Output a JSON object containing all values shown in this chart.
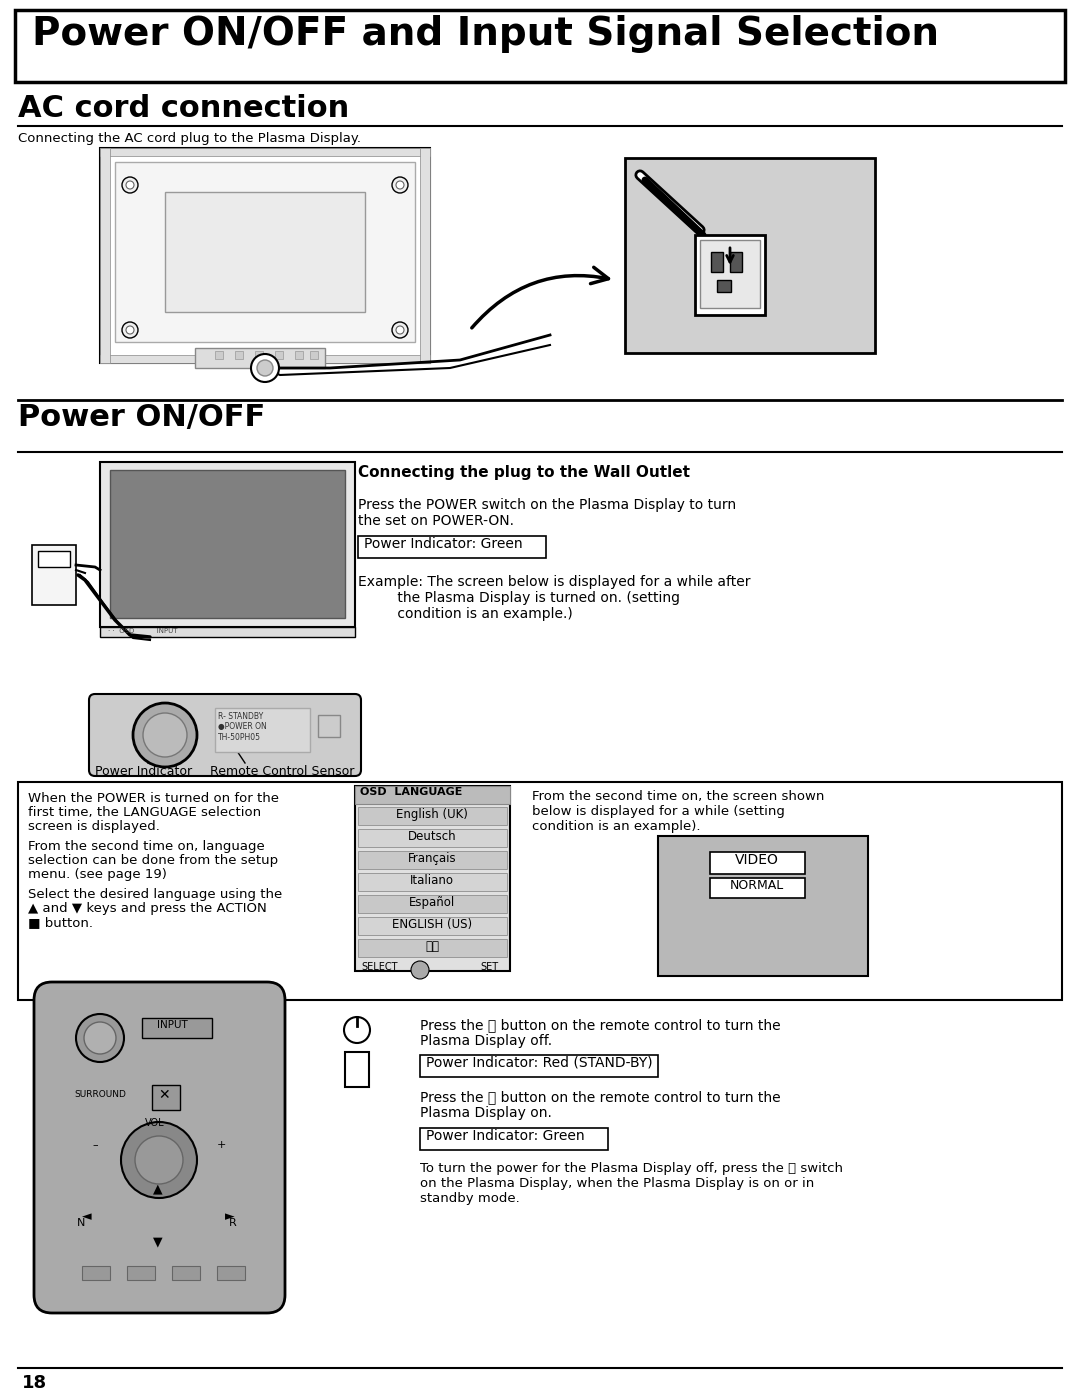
{
  "bg_color": "#ffffff",
  "page_num": "18",
  "main_title": "Power ON/OFF and Input Signal Selection",
  "section1_title": "AC cord connection",
  "section1_subtitle": "Connecting the AC cord plug to the Plasma Display.",
  "section2_title": "Power ON/OFF",
  "wall_outlet_heading": "Connecting the plug to the Wall Outlet",
  "power_on_text1": "Press the POWER switch on the Plasma Display to turn\nthe set on POWER-ON.",
  "power_indicator_green": "Power Indicator: Green",
  "example_text": "Example: The screen below is displayed for a while after\n         the Plasma Display is turned on. (setting\n         condition is an example.)",
  "power_indicator_label": "Power Indicator",
  "remote_sensor_label": "Remote Control Sensor",
  "osd_title": "OSD  LANGUAGE",
  "osd_languages": [
    "English (UK)",
    "Deutsch",
    "Français",
    "Italiano",
    "Español",
    "ENGLISH (US)",
    "中文"
  ],
  "from_second_text": "From the second time on, the screen shown\nbelow is displayed for a while (setting\ncondition is an example).",
  "video_label": "VIDEO",
  "normal_label": "NORMAL",
  "press_off_text": "Press the ⏻ button on the remote control to turn the\nPlasma Display off.",
  "power_indicator_red": "Power Indicator: Red (STAND-BY)",
  "press_on_text": "Press the ⏻ button on the remote control to turn the\nPlasma Display on.",
  "power_indicator_green2": "Power Indicator: Green",
  "standby_text": "To turn the power for the Plasma Display off, press the ⏻ switch\non the Plasma Display, when the Plasma Display is on or in\nstandby mode.",
  "left_box_line1": "When the POWER is turned on for the",
  "left_box_line2": "first time, the LANGUAGE selection",
  "left_box_line3": "screen is displayed.",
  "left_box_line4": "From the second time on, language",
  "left_box_line5": "selection can be done from the setup",
  "left_box_line6": "menu. (see page 19)",
  "left_box_line7": "Select the desired language using the",
  "left_box_line8": "▲ and ▼ keys and press the ACTION",
  "left_box_line9": "■ button."
}
